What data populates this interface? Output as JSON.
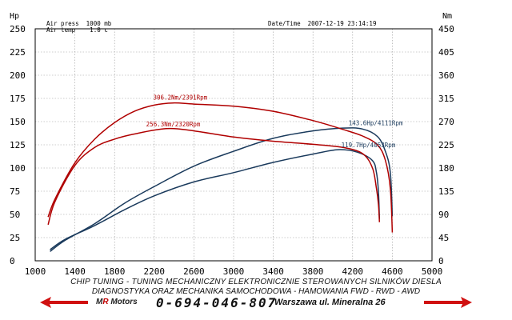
{
  "chart_data": {
    "type": "line",
    "axes": {
      "x": {
        "ticks": [
          1000,
          1400,
          1800,
          2200,
          2600,
          3000,
          3400,
          3800,
          4200,
          4600,
          5000
        ],
        "range": [
          1000,
          5000
        ]
      },
      "y_left": {
        "unit": "Hp",
        "ticks": [
          0,
          25,
          50,
          75,
          100,
          125,
          150,
          175,
          200,
          225,
          250
        ],
        "range": [
          0,
          250
        ]
      },
      "y_right": {
        "unit": "Nm",
        "ticks": [
          0,
          45,
          90,
          135,
          180,
          225,
          270,
          315,
          360,
          405,
          450
        ],
        "range": [
          0,
          450
        ]
      },
      "grid": true
    },
    "header": {
      "air_press": "Air press  1000 mb",
      "air_temp": "Air temp    1.0 c",
      "datetime": "Date/Time  2007-12-19 23:14:19"
    },
    "series": [
      {
        "axis": "left",
        "color": "#1a3a5c",
        "points": [
          [
            1150,
            10
          ],
          [
            1300,
            22
          ],
          [
            1600,
            40
          ],
          [
            1900,
            62
          ],
          [
            2200,
            80
          ],
          [
            2600,
            102
          ],
          [
            3000,
            118
          ],
          [
            3400,
            132
          ],
          [
            3800,
            140
          ],
          [
            4100,
            143
          ],
          [
            4300,
            142
          ],
          [
            4450,
            134
          ],
          [
            4530,
            118
          ],
          [
            4580,
            95
          ],
          [
            4600,
            48
          ]
        ]
      },
      {
        "axis": "left",
        "color": "#1a3a5c",
        "points": [
          [
            1150,
            12
          ],
          [
            1300,
            23
          ],
          [
            1600,
            38
          ],
          [
            1900,
            55
          ],
          [
            2200,
            70
          ],
          [
            2600,
            85
          ],
          [
            3000,
            95
          ],
          [
            3400,
            106
          ],
          [
            3800,
            115
          ],
          [
            4053,
            119.7
          ],
          [
            4250,
            117
          ],
          [
            4400,
            108
          ],
          [
            4440,
            95
          ],
          [
            4460,
            75
          ],
          [
            4470,
            45
          ]
        ]
      },
      {
        "axis": "right",
        "color": "#b00000",
        "points": [
          [
            1130,
            85
          ],
          [
            1200,
            120
          ],
          [
            1400,
            190
          ],
          [
            1600,
            236
          ],
          [
            1800,
            268
          ],
          [
            2000,
            290
          ],
          [
            2200,
            302
          ],
          [
            2391,
            306.2
          ],
          [
            2600,
            304
          ],
          [
            3000,
            300
          ],
          [
            3400,
            290
          ],
          [
            3800,
            272
          ],
          [
            4100,
            255
          ],
          [
            4300,
            242
          ],
          [
            4450,
            225
          ],
          [
            4530,
            195
          ],
          [
            4580,
            140
          ],
          [
            4600,
            55
          ]
        ]
      },
      {
        "axis": "right",
        "color": "#b00000",
        "points": [
          [
            1130,
            70
          ],
          [
            1200,
            115
          ],
          [
            1400,
            185
          ],
          [
            1600,
            220
          ],
          [
            1800,
            236
          ],
          [
            2000,
            246
          ],
          [
            2320,
            256.3
          ],
          [
            2600,
            252
          ],
          [
            3000,
            240
          ],
          [
            3400,
            232
          ],
          [
            3800,
            226
          ],
          [
            4100,
            220
          ],
          [
            4300,
            208
          ],
          [
            4400,
            180
          ],
          [
            4440,
            140
          ],
          [
            4460,
            110
          ],
          [
            4470,
            75
          ]
        ]
      }
    ],
    "annotations": [
      {
        "text": "306.2Nm/2391Rpm",
        "color": "#b00000",
        "x": 2391,
        "y": 306.2,
        "axis": "right"
      },
      {
        "text": "256.3Nm/2320Rpm",
        "color": "#b00000",
        "x": 2320,
        "y": 256.3,
        "axis": "right"
      },
      {
        "text": "143.6Hp/4111Rpm",
        "color": "#1a3a5c",
        "x": 4111,
        "y": 143.6,
        "axis": "left"
      },
      {
        "text": "119.7Hp/4053Rpm",
        "color": "#1a3a5c",
        "x": 4053,
        "y": 119.7,
        "axis": "left"
      }
    ]
  },
  "footer": {
    "line1": "CHIP TUNING - TUNING MECHANICZNY ELEKTRONICZNIE STEROWANYCH SILNIKÓW DIESLA",
    "line2": "DIAGNOSTYKA ORAZ MECHANIKA SAMOCHODOWA - HAMOWANIA FWD - RWD - AWD",
    "brand_m": "M",
    "brand_r": "R",
    "brand_rest": " Motors",
    "phone": "0-694-046-807",
    "address": "Warszawa ul. Mineralna 26",
    "colors": {
      "arrow": "#d01010"
    }
  }
}
